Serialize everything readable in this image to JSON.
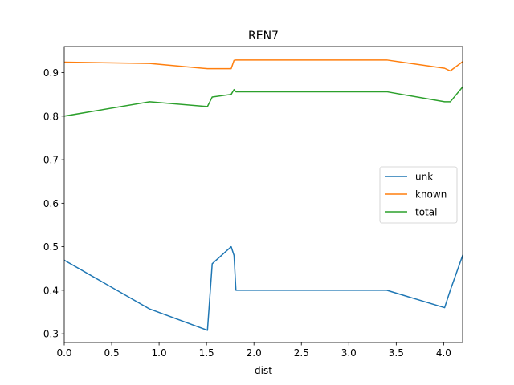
{
  "chart_data": {
    "type": "line",
    "title": "REN7",
    "xlabel": "dist",
    "ylabel": "",
    "xlim": [
      0.0,
      4.2
    ],
    "ylim": [
      0.28,
      0.96
    ],
    "xticks": [
      "0.0",
      "0.5",
      "1.0",
      "1.5",
      "2.0",
      "2.5",
      "3.0",
      "3.5",
      "4.0"
    ],
    "yticks": [
      "0.3",
      "0.4",
      "0.5",
      "0.6",
      "0.7",
      "0.8",
      "0.9"
    ],
    "grid": false,
    "legend_position": "center-right",
    "series": [
      {
        "name": "unk",
        "color": "#1f77b4",
        "x": [
          0.0,
          0.9,
          1.51,
          1.56,
          1.76,
          1.79,
          1.81,
          3.4,
          4.01,
          4.07,
          4.2
        ],
        "y": [
          0.469,
          0.357,
          0.308,
          0.461,
          0.5,
          0.48,
          0.4,
          0.4,
          0.36,
          0.4,
          0.48
        ]
      },
      {
        "name": "known",
        "color": "#ff7f0e",
        "x": [
          0.0,
          0.9,
          1.51,
          1.56,
          1.76,
          1.79,
          1.81,
          3.4,
          4.01,
          4.07,
          4.2
        ],
        "y": [
          0.924,
          0.921,
          0.909,
          0.909,
          0.909,
          0.928,
          0.929,
          0.929,
          0.91,
          0.904,
          0.925
        ]
      },
      {
        "name": "total",
        "color": "#2ca02c",
        "x": [
          0.0,
          0.9,
          1.51,
          1.56,
          1.76,
          1.79,
          1.81,
          3.4,
          4.01,
          4.07,
          4.2
        ],
        "y": [
          0.8,
          0.833,
          0.822,
          0.844,
          0.85,
          0.861,
          0.856,
          0.856,
          0.833,
          0.833,
          0.867
        ]
      }
    ]
  }
}
